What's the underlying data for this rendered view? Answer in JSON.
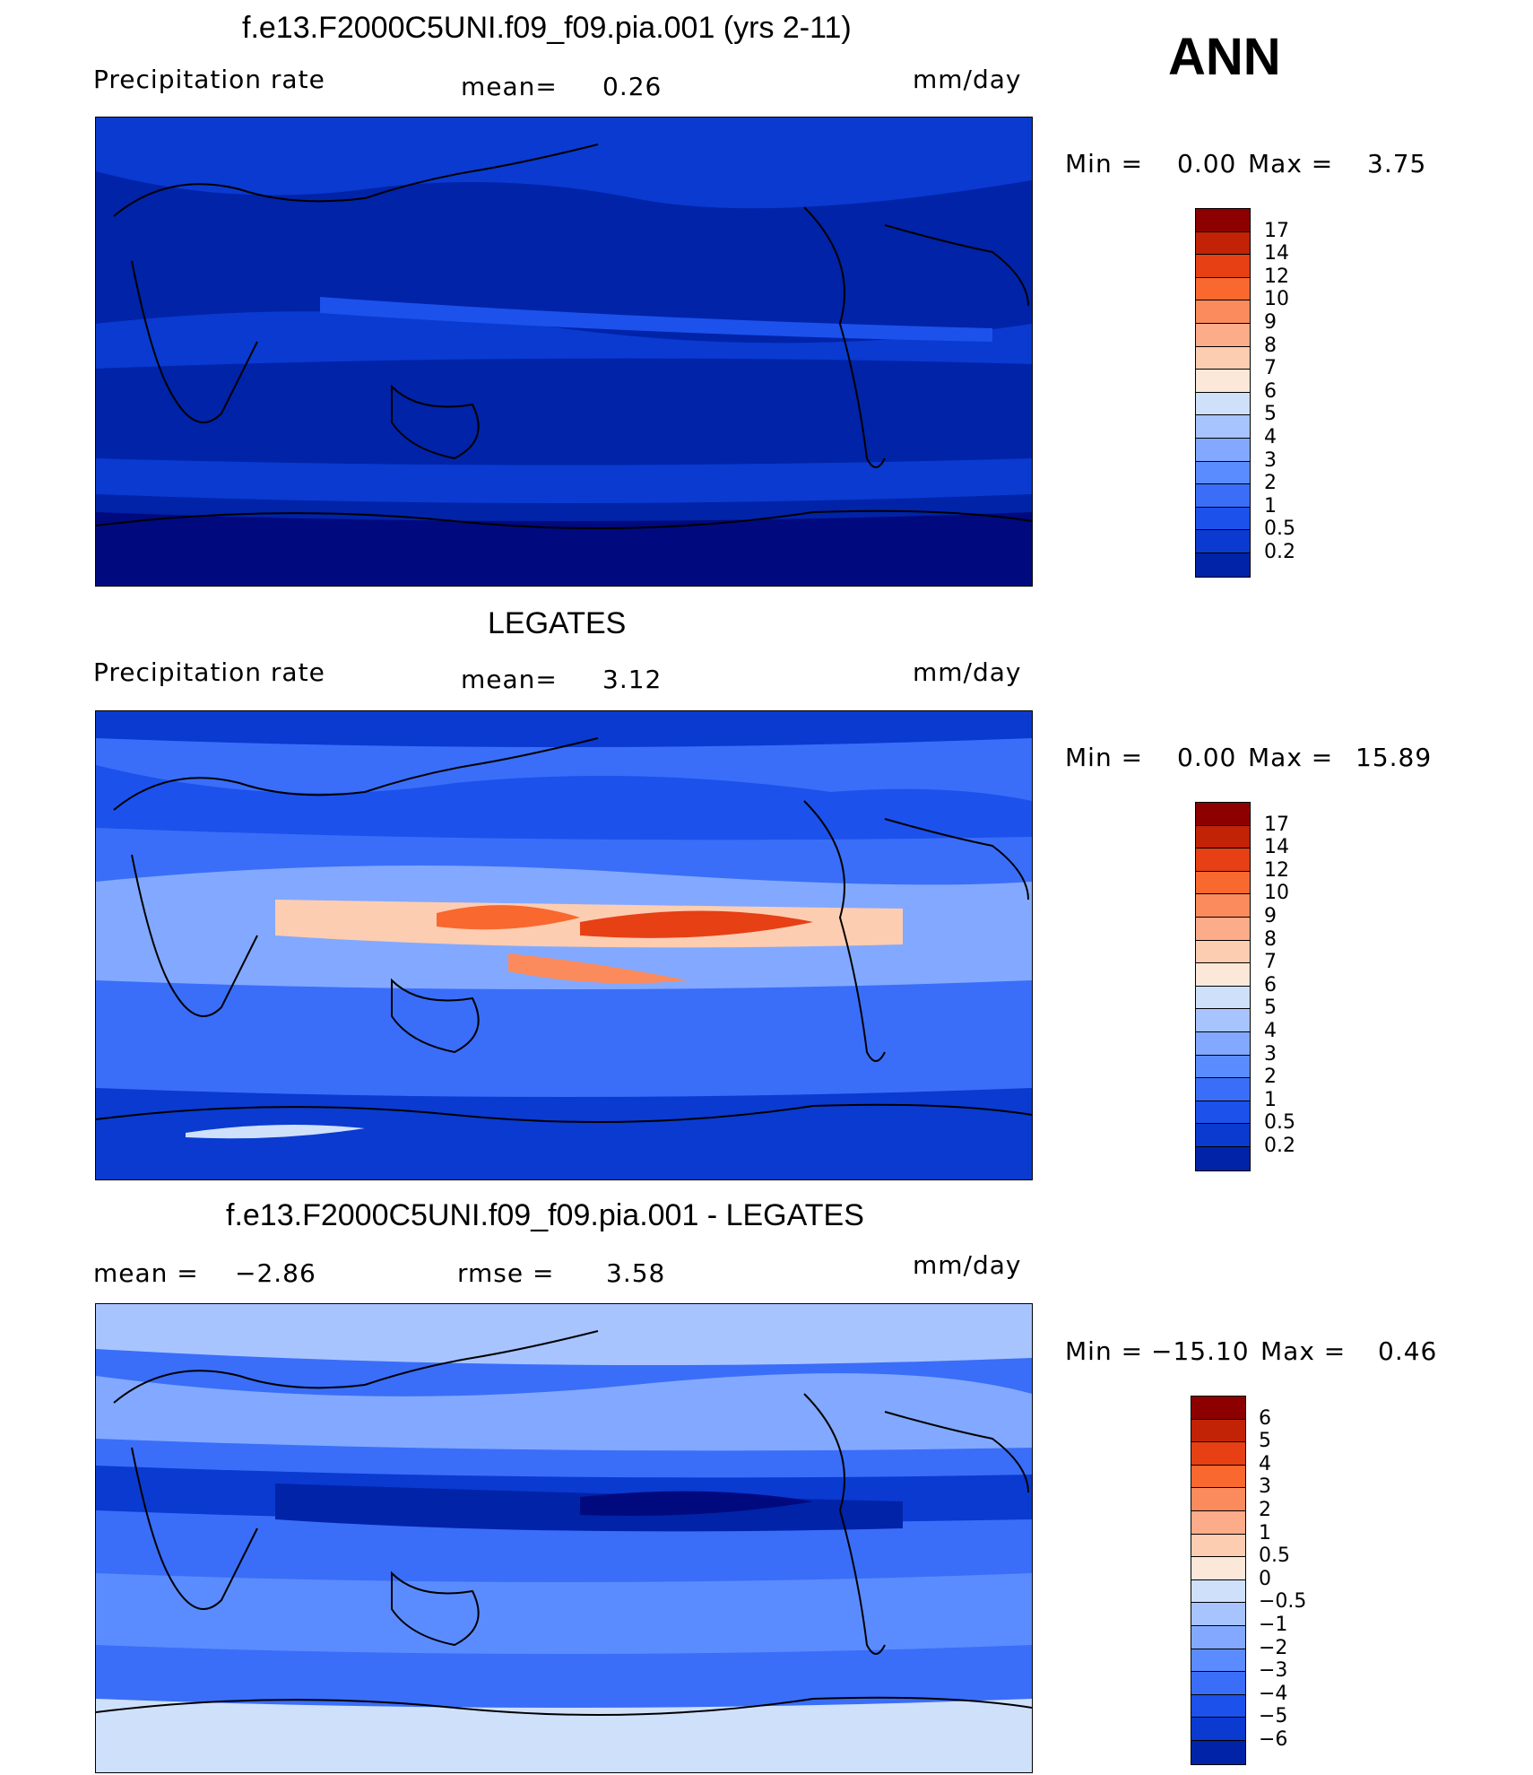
{
  "season": "ANN",
  "colors": {
    "seq": [
      "#000a7e",
      "#0023a8",
      "#0a3ad0",
      "#1c51ec",
      "#3a6ef8",
      "#5b8cff",
      "#82a9ff",
      "#a8c4ff",
      "#cfe0fb",
      "#fbe8d8",
      "#fdcdb2",
      "#fdac8a",
      "#fb8b5c",
      "#f8682f",
      "#e64014",
      "#c22206",
      "#8c0000"
    ],
    "diff": [
      "#000a7e",
      "#0023a8",
      "#0a3ad0",
      "#1c51ec",
      "#3a6ef8",
      "#5b8cff",
      "#82a9ff",
      "#a8c4ff",
      "#cfe0fb",
      "#fbe8d8",
      "#fdcdb2",
      "#fdac8a",
      "#fb8b5c",
      "#f8682f",
      "#e64014",
      "#c22206",
      "#8c0000"
    ]
  },
  "panels": [
    {
      "title": "f.e13.F2000C5UNI.f09_f09.pia.001 (yrs 2-11)",
      "left_label": "Precipitation  rate",
      "mid_label": "mean=",
      "mid_value": "0.26",
      "units": "mm/day",
      "min_label": "Min  =",
      "min_value": "0.00",
      "max_label": "Max  =",
      "max_value": "3.75",
      "colorbar_levels": [
        "17",
        "14",
        "12",
        "10",
        "9",
        "8",
        "7",
        "6",
        "5",
        "4",
        "3",
        "2",
        "1",
        "0.5",
        "0.2"
      ]
    },
    {
      "title": "LEGATES",
      "left_label": "Precipitation  rate",
      "mid_label": "mean=",
      "mid_value": "3.12",
      "units": "mm/day",
      "min_label": "Min  =",
      "min_value": "0.00",
      "max_label": "Max  =",
      "max_value": "15.89",
      "colorbar_levels": [
        "17",
        "14",
        "12",
        "10",
        "9",
        "8",
        "7",
        "6",
        "5",
        "4",
        "3",
        "2",
        "1",
        "0.5",
        "0.2"
      ]
    },
    {
      "title": "f.e13.F2000C5UNI.f09_f09.pia.001 - LEGATES",
      "left_label": "mean  =",
      "left_value": "−2.86",
      "mid_label": "rmse  =",
      "mid_value": "3.58",
      "units": "mm/day",
      "min_label": "Min  =",
      "min_value": "−15.10",
      "max_label": "Max  =",
      "max_value": "0.46",
      "colorbar_levels": [
        "6",
        "5",
        "4",
        "3",
        "2",
        "1",
        "0.5",
        "0",
        "−0.5",
        "−1",
        "−2",
        "−3",
        "−4",
        "−5",
        "−6"
      ]
    }
  ]
}
